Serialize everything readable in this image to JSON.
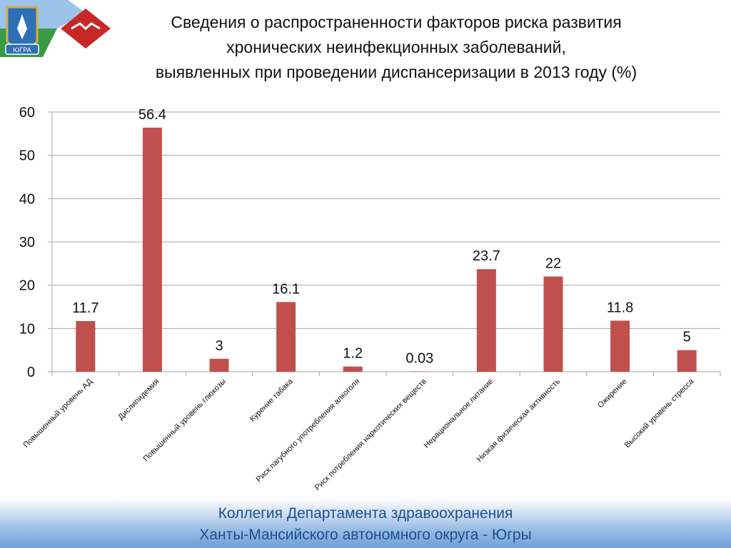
{
  "header": {
    "title_lines": [
      "Сведения о распространенности факторов риска развития",
      "хронических неинфекционных заболеваний,",
      "выявленных при проведении диспансеризации в 2013 году (%)"
    ]
  },
  "emblem": {
    "badge_text": "ЮГРА",
    "colors": {
      "sky": "#7fb0e0",
      "green": "#2e8b3a",
      "red": "#c62828",
      "gold": "#d9b13a"
    }
  },
  "chart_data": {
    "type": "bar",
    "title": "Сведения о распространенности факторов риска развития хронических неинфекционных заболеваний, выявленных при проведении диспансеризации в 2013 году (%)",
    "categories": [
      "Повышенный уровень АД",
      "Дислипидемия",
      "Повышенный уровень глюкозы",
      "Курение табака",
      "Риск пагубного употребления алкоголя",
      "Риск потребления наркотических веществ",
      "Нерациональное питание",
      "Низкая физическая активность",
      "Ожирение",
      "Высокий уровень стресса"
    ],
    "values": [
      11.7,
      56.4,
      3,
      16.1,
      1.2,
      0.03,
      23.7,
      22,
      11.8,
      5
    ],
    "value_labels": [
      "11.7",
      "56.4",
      "3",
      "16.1",
      "1.2",
      "0.03",
      "23.7",
      "22",
      "11.8",
      "5"
    ],
    "ylim": [
      0,
      60
    ],
    "yticks": [
      "0",
      "10",
      "20",
      "30",
      "40",
      "50",
      "60"
    ],
    "grid": true,
    "legend": "none",
    "bar_color": "#c0504d",
    "grid_color": "#a6a6a6"
  },
  "footer": {
    "line1": "Коллегия Департамента здравоохранения",
    "line2": "Ханты-Мансийского автономного округа - Югры"
  }
}
